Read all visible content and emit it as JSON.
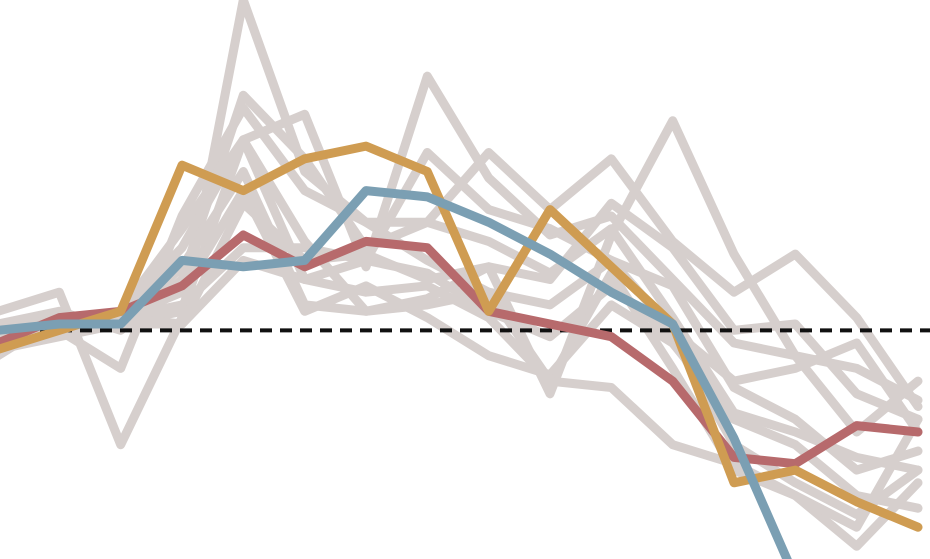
{
  "chart_data": {
    "type": "line",
    "title": "",
    "xlabel": "",
    "ylabel": "",
    "grid": false,
    "legend": "none",
    "x": [
      0,
      1,
      2,
      3,
      4,
      5,
      6,
      7,
      8,
      9,
      10,
      11,
      12,
      13,
      14,
      15
    ],
    "xlim": [
      0,
      15
    ],
    "ylim": [
      -36,
      52
    ],
    "reference_line": 0,
    "colors": {
      "background": "#d6cfcd",
      "red": "#b76a6c",
      "gold": "#cf9c52",
      "blue": "#7b9fb3",
      "reference": "#111111"
    },
    "background_series": [
      {
        "values": [
          3,
          6,
          -18,
          2,
          52,
          25,
          17,
          17,
          28,
          19,
          27,
          14,
          6,
          12,
          2,
          -12
        ]
      },
      {
        "values": [
          -2,
          0,
          1,
          3,
          30,
          34,
          10,
          40,
          24,
          15,
          18,
          8,
          -2,
          -4,
          -16,
          -8
        ]
      },
      {
        "values": [
          -3,
          1,
          3,
          16,
          30,
          14,
          3,
          4,
          6,
          4,
          11,
          0,
          -8,
          -6,
          -2,
          -16
        ]
      },
      {
        "values": [
          1,
          3,
          0,
          8,
          37,
          27,
          13,
          17,
          14,
          9,
          16,
          2,
          -13,
          -16,
          -20,
          -22
        ]
      },
      {
        "values": [
          -4,
          2,
          2,
          6,
          22,
          3,
          7,
          2,
          -4,
          -7,
          4,
          -2,
          -14,
          -18,
          -26,
          -28
        ]
      },
      {
        "values": [
          -2,
          0,
          -6,
          18,
          35,
          22,
          17,
          11,
          6,
          -8,
          9,
          -6,
          -22,
          -26,
          -34,
          -24
        ]
      },
      {
        "values": [
          0,
          2,
          1,
          10,
          25,
          4,
          3,
          5,
          10,
          8,
          20,
          13,
          0,
          1,
          -10,
          -14
        ]
      },
      {
        "values": [
          -1,
          1,
          2,
          4,
          13,
          13,
          11,
          9,
          3,
          -1,
          7,
          -1,
          -18,
          -24,
          -29,
          -22
        ]
      },
      {
        "values": [
          -3,
          -1,
          1,
          1,
          20,
          11,
          12,
          8,
          10,
          -10,
          15,
          33,
          12,
          -4,
          -6,
          -11
        ]
      },
      {
        "values": [
          -2,
          2,
          2,
          1,
          11,
          8,
          6,
          7,
          2,
          -8,
          -9,
          -18,
          -21,
          -26,
          -31,
          -14
        ]
      },
      {
        "values": [
          -1,
          1,
          3,
          13,
          30,
          8,
          11,
          28,
          19,
          16,
          11,
          7,
          -9,
          -14,
          -22,
          -19
        ]
      }
    ],
    "series": [
      {
        "color": "red",
        "values": [
          -2,
          2,
          3,
          7,
          15,
          10,
          14,
          13,
          3,
          1,
          -1,
          -8,
          -20,
          -21,
          -15,
          -16
        ]
      },
      {
        "color": "gold",
        "values": [
          -3,
          0,
          3,
          26,
          22,
          27,
          29,
          25,
          3,
          19,
          10,
          1,
          -24,
          -22,
          -27,
          -31
        ]
      },
      {
        "color": "blue",
        "values": [
          0,
          1,
          1,
          11,
          10,
          11,
          22,
          21,
          17,
          12,
          6,
          1,
          -17,
          -39,
          -39,
          -39
        ]
      }
    ]
  }
}
